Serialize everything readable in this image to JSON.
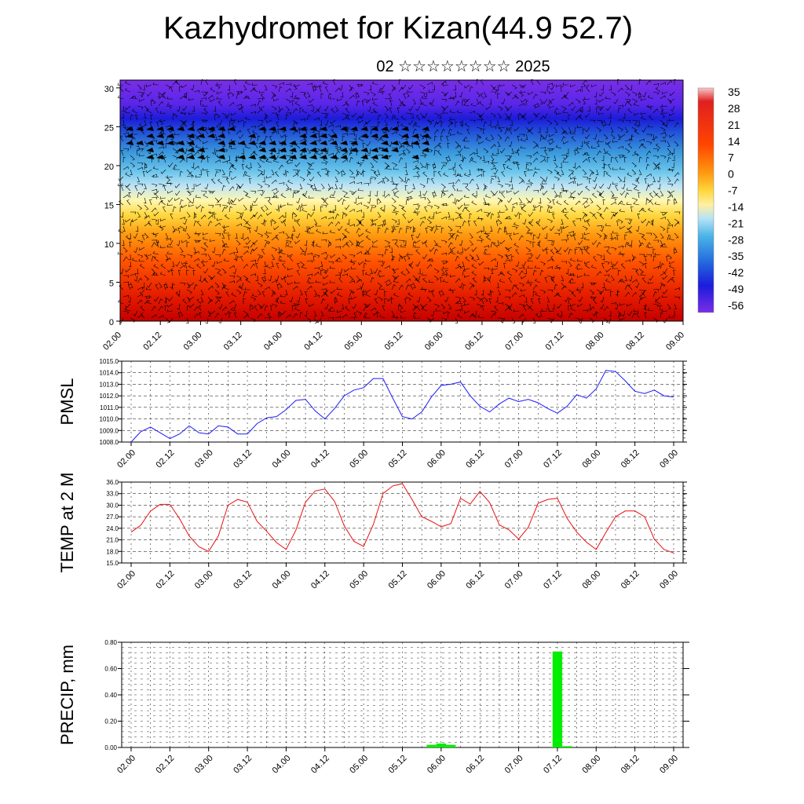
{
  "title": "Kazhydromet for Kizan(44.9 52.7)",
  "subtitle": "02 ☆☆☆☆☆☆☆☆ 2025",
  "colors": {
    "pmsl_line": "#1a1aff",
    "temp_line": "#e81010",
    "precip_bar": "#00ee00",
    "wind_barb": "#000000"
  },
  "chart_data": [
    {
      "type": "heatmap",
      "name": "height-time cross-section",
      "x_ticks": [
        "02.00",
        "02.12",
        "03.00",
        "03.12",
        "04.00",
        "04.12",
        "05.00",
        "05.12",
        "06.00",
        "06.12",
        "07.00",
        "07.12",
        "08.00",
        "08.12",
        "09.00"
      ],
      "y_ticks": [
        "0",
        "5",
        "10",
        "15",
        "20",
        "25",
        "30"
      ],
      "ylim": [
        0,
        31
      ],
      "colorbar_labels": [
        "35",
        "28",
        "21",
        "14",
        "7",
        "0",
        "-7",
        "-14",
        "-21",
        "-28",
        "-35",
        "-42",
        "-49",
        "-56"
      ],
      "color_scale": "red (warm, low levels) to yellow, light blue, blue, purple (cold, upper levels)",
      "overlay": "wind barbs"
    },
    {
      "type": "line",
      "ylabel": "PMSL",
      "y_ticks": [
        "1015.0",
        "1014.0",
        "1013.0",
        "1012.0",
        "1011.0",
        "1010.0",
        "1009.0",
        "1008.0"
      ],
      "ylim": [
        1008,
        1015
      ],
      "x_ticks": [
        "02.00",
        "02.12",
        "03.00",
        "03.12",
        "04.00",
        "04.12",
        "05.00",
        "05.12",
        "06.00",
        "06.12",
        "07.00",
        "07.12",
        "08.00",
        "08.12",
        "09.00"
      ],
      "x_start": "02.00",
      "step_hours": 3,
      "values": [
        1008.0,
        1008.9,
        1009.3,
        1008.8,
        1008.3,
        1008.7,
        1009.4,
        1008.8,
        1008.7,
        1009.4,
        1009.3,
        1008.7,
        1008.7,
        1009.6,
        1010.1,
        1010.2,
        1010.8,
        1011.6,
        1011.7,
        1010.7,
        1010.0,
        1010.9,
        1012.0,
        1012.5,
        1012.7,
        1013.5,
        1013.5,
        1011.8,
        1010.2,
        1010.0,
        1010.6,
        1011.9,
        1012.9,
        1013.0,
        1013.2,
        1012.0,
        1011.1,
        1010.6,
        1011.3,
        1011.8,
        1011.5,
        1011.7,
        1011.4,
        1010.9,
        1010.5,
        1011.1,
        1012.1,
        1011.8,
        1012.6,
        1014.2,
        1014.1,
        1013.3,
        1012.4,
        1012.2,
        1012.5,
        1012.0,
        1011.9
      ]
    },
    {
      "type": "line",
      "ylabel": "TEMP at 2 M",
      "y_ticks": [
        "36.0",
        "33.0",
        "30.0",
        "27.0",
        "24.0",
        "21.0",
        "18.0",
        "15.0"
      ],
      "ylim": [
        15,
        36
      ],
      "x_ticks": [
        "02.00",
        "02.12",
        "03.00",
        "03.12",
        "04.00",
        "04.12",
        "05.00",
        "05.12",
        "06.00",
        "06.12",
        "07.00",
        "07.12",
        "08.00",
        "08.12",
        "09.00"
      ],
      "x_start": "02.00",
      "step_hours": 3,
      "values": [
        23.0,
        24.8,
        28.5,
        30.2,
        30.2,
        26.5,
        22.0,
        19.2,
        18.0,
        22.0,
        30.0,
        31.5,
        30.8,
        25.8,
        23.2,
        20.3,
        18.5,
        23.5,
        30.8,
        33.7,
        34.2,
        31.0,
        24.6,
        20.6,
        19.3,
        25.0,
        33.0,
        35.0,
        35.6,
        31.5,
        27.0,
        25.8,
        24.4,
        25.2,
        31.8,
        30.3,
        33.6,
        30.7,
        24.9,
        23.6,
        21.2,
        24.3,
        30.5,
        31.5,
        31.8,
        26.6,
        23.0,
        20.4,
        18.5,
        22.9,
        27.0,
        28.5,
        28.5,
        27.0,
        21.2,
        18.5,
        17.6
      ]
    },
    {
      "type": "bar",
      "ylabel": "PRECIP, mm",
      "y_ticks": [
        "0.80",
        "0.60",
        "0.40",
        "0.20",
        "0.00"
      ],
      "ylim": [
        0,
        0.8
      ],
      "x_ticks": [
        "02.00",
        "02.12",
        "03.00",
        "03.12",
        "04.00",
        "04.12",
        "05.00",
        "05.12",
        "06.00",
        "06.12",
        "07.00",
        "07.12",
        "08.00",
        "08.12",
        "09.00"
      ],
      "x_start": "02.00",
      "step_hours": 3,
      "values": [
        0,
        0,
        0,
        0,
        0,
        0,
        0,
        0,
        0,
        0,
        0,
        0,
        0,
        0,
        0,
        0,
        0,
        0,
        0,
        0,
        0,
        0,
        0,
        0,
        0,
        0,
        0,
        0,
        0,
        0,
        0,
        0.02,
        0.03,
        0.02,
        0,
        0,
        0,
        0,
        0,
        0,
        0,
        0,
        0,
        0,
        0.73,
        0.01,
        0,
        0,
        0,
        0,
        0,
        0,
        0,
        0,
        0,
        0,
        0
      ]
    }
  ]
}
